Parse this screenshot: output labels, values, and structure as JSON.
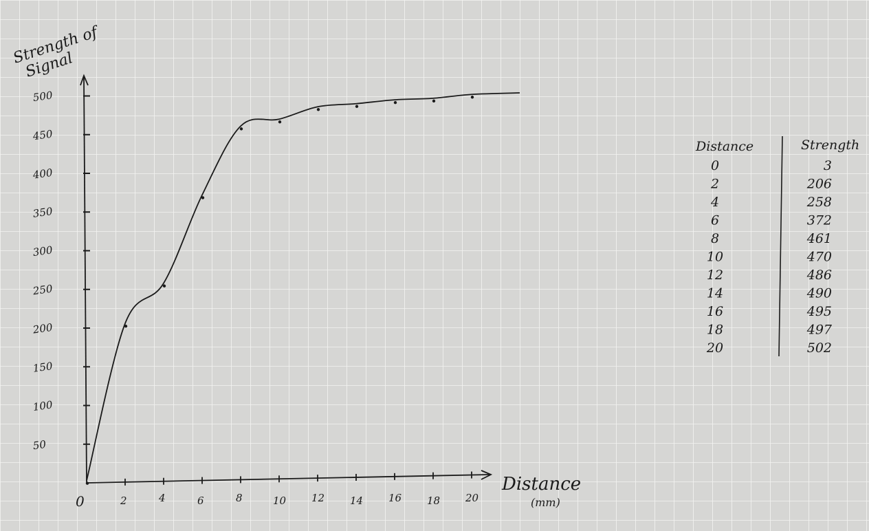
{
  "chart_data": {
    "type": "scatter",
    "title": "",
    "ylabel": [
      "Strength of",
      "Signal"
    ],
    "xlabel": "Distance",
    "xunit": "(mm)",
    "origin_label": "0",
    "xlim": [
      0,
      22
    ],
    "ylim": [
      0,
      520
    ],
    "x_ticks": [
      2,
      4,
      6,
      8,
      10,
      12,
      14,
      16,
      18,
      20
    ],
    "y_ticks": [
      50,
      100,
      150,
      200,
      250,
      300,
      350,
      400,
      450,
      500
    ],
    "x": [
      0,
      2,
      4,
      6,
      8,
      10,
      12,
      14,
      16,
      18,
      20
    ],
    "y": [
      3,
      206,
      258,
      372,
      461,
      470,
      486,
      490,
      495,
      497,
      502
    ],
    "trend_curve": true,
    "grid": true
  },
  "table": {
    "headers": [
      "Distance",
      "Strength"
    ],
    "rows": [
      [
        "0",
        "3"
      ],
      [
        "2",
        "206"
      ],
      [
        "4",
        "258"
      ],
      [
        "6",
        "372"
      ],
      [
        "8",
        "461"
      ],
      [
        "10",
        "470"
      ],
      [
        "12",
        "486"
      ],
      [
        "14",
        "490"
      ],
      [
        "16",
        "495"
      ],
      [
        "18",
        "497"
      ],
      [
        "20",
        "502"
      ]
    ]
  },
  "colors": {
    "paper": "#d6d6d4",
    "grid": "#f2f2f0",
    "ink": "#1a1a1a"
  }
}
